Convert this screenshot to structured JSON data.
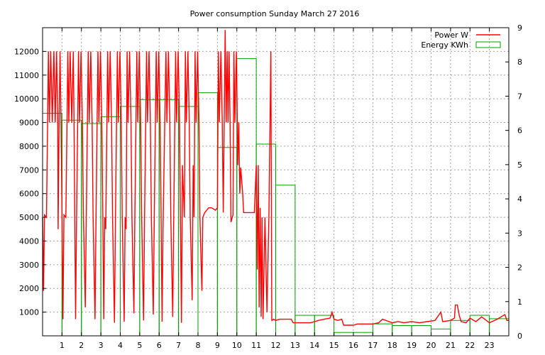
{
  "chart_data": {
    "type": "line",
    "title": "Power consumption Sunday March 27 2016",
    "x_ticks": [
      1,
      2,
      3,
      4,
      5,
      6,
      7,
      8,
      9,
      10,
      11,
      12,
      13,
      14,
      15,
      16,
      17,
      18,
      19,
      20,
      21,
      22,
      23
    ],
    "xlim": [
      0,
      24
    ],
    "y_left_ticks": [
      1000,
      2000,
      3000,
      4000,
      5000,
      6000,
      7000,
      8000,
      9000,
      10000,
      11000,
      12000
    ],
    "ylim_left": [
      0,
      13000
    ],
    "y_right_ticks": [
      0,
      1,
      2,
      3,
      4,
      5,
      6,
      7,
      8,
      9
    ],
    "ylim_right": [
      0,
      9
    ],
    "grid": true,
    "legend_position": "top-right",
    "series": [
      {
        "name": "Power W",
        "axis": "left",
        "color": "#ff0000",
        "style": "line",
        "points": [
          [
            0.0,
            5000
          ],
          [
            0.05,
            1900
          ],
          [
            0.1,
            5100
          ],
          [
            0.2,
            5000
          ],
          [
            0.3,
            12000
          ],
          [
            0.35,
            9000
          ],
          [
            0.42,
            12000
          ],
          [
            0.5,
            9000
          ],
          [
            0.58,
            12000
          ],
          [
            0.65,
            9000
          ],
          [
            0.72,
            12000
          ],
          [
            0.78,
            9000
          ],
          [
            0.8,
            4500
          ],
          [
            0.85,
            9100
          ],
          [
            0.9,
            12000
          ],
          [
            0.95,
            9000
          ],
          [
            1.0,
            5100
          ],
          [
            1.05,
            700
          ],
          [
            1.1,
            5100
          ],
          [
            1.2,
            5000
          ],
          [
            1.3,
            12000
          ],
          [
            1.35,
            9000
          ],
          [
            1.42,
            12000
          ],
          [
            1.5,
            9000
          ],
          [
            1.58,
            12000
          ],
          [
            1.62,
            9000
          ],
          [
            1.7,
            700
          ],
          [
            1.75,
            5000
          ],
          [
            1.85,
            12000
          ],
          [
            1.9,
            9000
          ],
          [
            1.98,
            12000
          ],
          [
            2.05,
            9000
          ],
          [
            2.1,
            5100
          ],
          [
            2.2,
            1200
          ],
          [
            2.25,
            5000
          ],
          [
            2.35,
            12000
          ],
          [
            2.4,
            9000
          ],
          [
            2.48,
            12000
          ],
          [
            2.55,
            9000
          ],
          [
            2.6,
            5000
          ],
          [
            2.7,
            700
          ],
          [
            2.75,
            5000
          ],
          [
            2.85,
            12000
          ],
          [
            2.9,
            9000
          ],
          [
            2.98,
            12000
          ],
          [
            3.05,
            9000
          ],
          [
            3.1,
            5000
          ],
          [
            3.15,
            700
          ],
          [
            3.2,
            5000
          ],
          [
            3.25,
            4500
          ],
          [
            3.35,
            12000
          ],
          [
            3.4,
            9000
          ],
          [
            3.48,
            12000
          ],
          [
            3.55,
            9000
          ],
          [
            3.6,
            5000
          ],
          [
            3.7,
            550
          ],
          [
            3.75,
            5000
          ],
          [
            3.85,
            12000
          ],
          [
            3.9,
            9000
          ],
          [
            3.98,
            12000
          ],
          [
            4.05,
            9000
          ],
          [
            4.1,
            5000
          ],
          [
            4.2,
            600
          ],
          [
            4.25,
            5000
          ],
          [
            4.3,
            4500
          ],
          [
            4.35,
            12000
          ],
          [
            4.4,
            9000
          ],
          [
            4.48,
            12000
          ],
          [
            4.55,
            9000
          ],
          [
            4.6,
            5000
          ],
          [
            4.7,
            950
          ],
          [
            4.75,
            5000
          ],
          [
            4.85,
            12000
          ],
          [
            4.9,
            9000
          ],
          [
            4.98,
            12000
          ],
          [
            5.05,
            9000
          ],
          [
            5.1,
            5000
          ],
          [
            5.2,
            650
          ],
          [
            5.25,
            5000
          ],
          [
            5.35,
            12000
          ],
          [
            5.4,
            9000
          ],
          [
            5.48,
            12000
          ],
          [
            5.55,
            9000
          ],
          [
            5.6,
            5000
          ],
          [
            5.7,
            900
          ],
          [
            5.75,
            5000
          ],
          [
            5.85,
            12000
          ],
          [
            5.9,
            9000
          ],
          [
            5.98,
            12000
          ],
          [
            6.05,
            9000
          ],
          [
            6.1,
            5000
          ],
          [
            6.15,
            600
          ],
          [
            6.2,
            4500
          ],
          [
            6.35,
            12000
          ],
          [
            6.4,
            9000
          ],
          [
            6.48,
            12000
          ],
          [
            6.55,
            9000
          ],
          [
            6.6,
            5000
          ],
          [
            6.7,
            800
          ],
          [
            6.75,
            5000
          ],
          [
            6.85,
            12000
          ],
          [
            6.9,
            9000
          ],
          [
            6.98,
            12000
          ],
          [
            7.05,
            9000
          ],
          [
            7.1,
            4500
          ],
          [
            7.15,
            550
          ],
          [
            7.2,
            7200
          ],
          [
            7.3,
            5000
          ],
          [
            7.35,
            12000
          ],
          [
            7.4,
            9000
          ],
          [
            7.48,
            12000
          ],
          [
            7.55,
            9000
          ],
          [
            7.6,
            5100
          ],
          [
            7.7,
            1500
          ],
          [
            7.75,
            7200
          ],
          [
            7.8,
            5000
          ],
          [
            7.85,
            12000
          ],
          [
            7.9,
            9000
          ],
          [
            7.98,
            12000
          ],
          [
            8.05,
            9000
          ],
          [
            8.1,
            5000
          ],
          [
            8.2,
            1900
          ],
          [
            8.25,
            5000
          ],
          [
            8.35,
            5200
          ],
          [
            8.45,
            5300
          ],
          [
            8.55,
            5400
          ],
          [
            8.7,
            5400
          ],
          [
            8.9,
            5300
          ],
          [
            9.0,
            5400
          ],
          [
            9.05,
            12000
          ],
          [
            9.1,
            9000
          ],
          [
            9.18,
            12000
          ],
          [
            9.25,
            9000
          ],
          [
            9.3,
            5200
          ],
          [
            9.4,
            12900
          ],
          [
            9.45,
            9000
          ],
          [
            9.5,
            12000
          ],
          [
            9.55,
            9000
          ],
          [
            9.6,
            12000
          ],
          [
            9.65,
            9000
          ],
          [
            9.7,
            4800
          ],
          [
            9.8,
            5100
          ],
          [
            9.85,
            12000
          ],
          [
            9.9,
            9000
          ],
          [
            9.98,
            12000
          ],
          [
            10.05,
            7200
          ],
          [
            10.1,
            9000
          ],
          [
            10.15,
            6000
          ],
          [
            10.2,
            7100
          ],
          [
            10.3,
            6000
          ],
          [
            10.35,
            5200
          ],
          [
            10.6,
            5200
          ],
          [
            10.9,
            5200
          ],
          [
            11.0,
            7200
          ],
          [
            11.05,
            2800
          ],
          [
            11.1,
            7200
          ],
          [
            11.15,
            1200
          ],
          [
            11.2,
            5400
          ],
          [
            11.25,
            800
          ],
          [
            11.3,
            5000
          ],
          [
            11.35,
            700
          ],
          [
            11.45,
            5000
          ],
          [
            11.55,
            1000
          ],
          [
            11.65,
            5000
          ],
          [
            11.75,
            12000
          ],
          [
            11.8,
            650
          ],
          [
            11.9,
            700
          ],
          [
            12.0,
            650
          ],
          [
            12.2,
            700
          ],
          [
            12.5,
            700
          ],
          [
            12.8,
            700
          ],
          [
            12.9,
            550
          ],
          [
            13.5,
            550
          ],
          [
            13.8,
            550
          ],
          [
            14.0,
            600
          ],
          [
            14.2,
            650
          ],
          [
            14.5,
            700
          ],
          [
            14.8,
            750
          ],
          [
            14.9,
            1000
          ],
          [
            15.0,
            700
          ],
          [
            15.2,
            650
          ],
          [
            15.4,
            700
          ],
          [
            15.5,
            450
          ],
          [
            16.0,
            450
          ],
          [
            16.2,
            500
          ],
          [
            16.8,
            500
          ],
          [
            17.0,
            500
          ],
          [
            17.3,
            550
          ],
          [
            17.5,
            700
          ],
          [
            18.0,
            550
          ],
          [
            18.3,
            600
          ],
          [
            18.6,
            550
          ],
          [
            19.0,
            600
          ],
          [
            19.4,
            550
          ],
          [
            19.8,
            600
          ],
          [
            20.2,
            650
          ],
          [
            20.5,
            1000
          ],
          [
            20.6,
            600
          ],
          [
            21.0,
            650
          ],
          [
            21.2,
            750
          ],
          [
            21.25,
            1300
          ],
          [
            21.35,
            1300
          ],
          [
            21.45,
            850
          ],
          [
            21.55,
            600
          ],
          [
            21.8,
            550
          ],
          [
            22.0,
            750
          ],
          [
            22.3,
            600
          ],
          [
            22.6,
            800
          ],
          [
            23.0,
            550
          ],
          [
            23.4,
            700
          ],
          [
            23.8,
            900
          ],
          [
            23.9,
            650
          ],
          [
            24.0,
            650
          ]
        ]
      },
      {
        "name": "Energy KWh",
        "axis": "right",
        "color": "#00a000",
        "style": "histogram",
        "bars": [
          {
            "hour": 0,
            "value": 6.5
          },
          {
            "hour": 1,
            "value": 6.3
          },
          {
            "hour": 2,
            "value": 6.2
          },
          {
            "hour": 3,
            "value": 6.4
          },
          {
            "hour": 4,
            "value": 6.7
          },
          {
            "hour": 5,
            "value": 6.9
          },
          {
            "hour": 6,
            "value": 6.9
          },
          {
            "hour": 7,
            "value": 6.7
          },
          {
            "hour": 8,
            "value": 7.1
          },
          {
            "hour": 9,
            "value": 5.5
          },
          {
            "hour": 10,
            "value": 8.1
          },
          {
            "hour": 11,
            "value": 5.6
          },
          {
            "hour": 12,
            "value": 4.4
          },
          {
            "hour": 13,
            "value": 0.6
          },
          {
            "hour": 14,
            "value": 0.6
          },
          {
            "hour": 15,
            "value": 0.1
          },
          {
            "hour": 16,
            "value": 0.1
          },
          {
            "hour": 17,
            "value": 0.35
          },
          {
            "hour": 18,
            "value": 0.3
          },
          {
            "hour": 19,
            "value": 0.3
          },
          {
            "hour": 20,
            "value": 0.2
          },
          {
            "hour": 21,
            "value": 0.45
          },
          {
            "hour": 22,
            "value": 0.6
          },
          {
            "hour": 23,
            "value": 0.5
          }
        ]
      }
    ]
  }
}
